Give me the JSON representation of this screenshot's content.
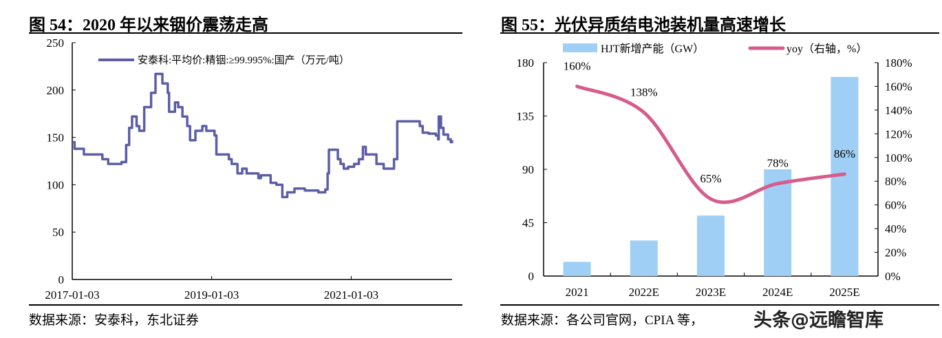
{
  "left_figure": {
    "title": "图 54：2020 年以来铟价震荡走高",
    "source": "数据来源：安泰科，东北证券"
  },
  "right_figure": {
    "title": "图 55：光伏异质结电池装机量高速增长",
    "source": "数据来源：各公司官网，CPIA 等，"
  },
  "watermark": "头条@远瞻智库",
  "chart_data": [
    {
      "type": "line",
      "step": true,
      "legend": "安泰科:平均价:精铟:≥99.995%:国产（万元/吨）",
      "legend_placement": "top",
      "color": "#5b5ea6",
      "ylim": [
        0,
        250
      ],
      "yticks": [
        "0",
        "50",
        "100",
        "150",
        "200",
        "250"
      ],
      "xticks": [
        "2017-01-03",
        "2019-01-03",
        "2021-01-03"
      ],
      "grid": false,
      "points": [
        [
          "2017-01-03",
          145
        ],
        [
          "2017-01-15",
          138
        ],
        [
          "2017-03-05",
          132
        ],
        [
          "2017-06-10",
          127
        ],
        [
          "2017-07-10",
          122
        ],
        [
          "2017-09-18",
          124
        ],
        [
          "2017-10-12",
          142
        ],
        [
          "2017-10-28",
          160
        ],
        [
          "2017-11-12",
          172
        ],
        [
          "2017-12-06",
          162
        ],
        [
          "2017-12-20",
          157
        ],
        [
          "2018-01-15",
          182
        ],
        [
          "2018-02-20",
          197
        ],
        [
          "2018-03-15",
          217
        ],
        [
          "2018-04-20",
          207
        ],
        [
          "2018-05-18",
          197
        ],
        [
          "2018-05-25",
          177
        ],
        [
          "2018-06-25",
          187
        ],
        [
          "2018-07-12",
          182
        ],
        [
          "2018-08-03",
          172
        ],
        [
          "2018-08-28",
          162
        ],
        [
          "2018-09-12",
          147
        ],
        [
          "2018-10-10",
          157
        ],
        [
          "2018-11-15",
          162
        ],
        [
          "2018-12-06",
          157
        ],
        [
          "2019-01-18",
          152
        ],
        [
          "2019-01-28",
          132
        ],
        [
          "2019-04-03",
          127
        ],
        [
          "2019-04-18",
          122
        ],
        [
          "2019-05-18",
          112
        ],
        [
          "2019-06-12",
          117
        ],
        [
          "2019-07-05",
          112
        ],
        [
          "2019-09-05",
          107
        ],
        [
          "2019-09-18",
          110
        ],
        [
          "2019-11-08",
          102
        ],
        [
          "2019-12-08",
          100
        ],
        [
          "2020-01-08",
          87
        ],
        [
          "2020-02-03",
          92
        ],
        [
          "2020-03-12",
          96
        ],
        [
          "2020-05-05",
          94
        ],
        [
          "2020-07-15",
          92
        ],
        [
          "2020-08-20",
          95
        ],
        [
          "2020-09-01",
          112
        ],
        [
          "2020-09-08",
          137
        ],
        [
          "2020-10-25",
          127
        ],
        [
          "2020-11-08",
          122
        ],
        [
          "2020-11-25",
          117
        ],
        [
          "2020-12-18",
          119
        ],
        [
          "2021-01-18",
          122
        ],
        [
          "2021-02-12",
          127
        ],
        [
          "2021-03-05",
          140
        ],
        [
          "2021-03-20",
          132
        ],
        [
          "2021-05-15",
          122
        ],
        [
          "2021-06-22",
          117
        ],
        [
          "2021-08-15",
          127
        ],
        [
          "2021-09-01",
          167
        ],
        [
          "2021-12-28",
          162
        ],
        [
          "2022-01-12",
          155
        ],
        [
          "2022-02-12",
          154
        ],
        [
          "2022-03-22",
          152
        ],
        [
          "2022-04-03",
          148
        ],
        [
          "2022-04-06",
          172
        ],
        [
          "2022-04-18",
          160
        ],
        [
          "2022-05-01",
          153
        ],
        [
          "2022-05-25",
          148
        ],
        [
          "2022-06-08",
          145
        ],
        [
          "2022-06-15",
          147
        ]
      ]
    },
    {
      "type": "bar+line",
      "categories": [
        "2021",
        "2022E",
        "2023E",
        "2024E",
        "2025E"
      ],
      "series": [
        {
          "name": "HJT新增产能（GW）",
          "type": "bar",
          "axis": "left",
          "color": "#9fcff5",
          "values": [
            12,
            30,
            51,
            90,
            168
          ]
        },
        {
          "name": "yoy（右轴，%）",
          "type": "line",
          "axis": "right",
          "color": "#d65c8c",
          "values": [
            160,
            138,
            65,
            78,
            86
          ],
          "labels": [
            "160%",
            "138%",
            "65%",
            "78%",
            "86%"
          ]
        }
      ],
      "ylim_left": [
        0,
        180
      ],
      "yticks_left": [
        "0",
        "45",
        "90",
        "135",
        "180"
      ],
      "ylim_right": [
        0,
        180
      ],
      "yticks_right": [
        "0%",
        "20%",
        "40%",
        "60%",
        "80%",
        "100%",
        "120%",
        "140%",
        "160%",
        "180%"
      ],
      "legend_placement": "top",
      "grid": false
    }
  ]
}
